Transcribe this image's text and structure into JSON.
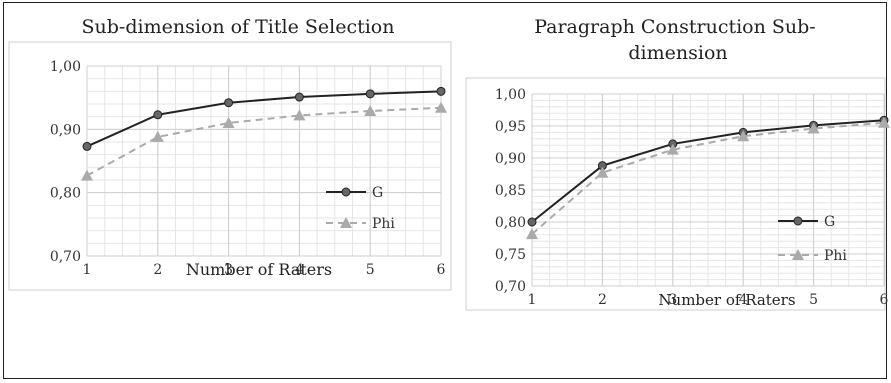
{
  "colors": {
    "g": "#222222",
    "phi": "#aaaaaa",
    "grid": "#e6e6e6",
    "gridMajor": "#cfcfcf"
  },
  "chart_data": [
    {
      "type": "line",
      "title": "Sub-dimension of Title Selection",
      "xlabel": "Number of Raters",
      "ylabel": "",
      "x": [
        1,
        2,
        3,
        4,
        5,
        6
      ],
      "ylim": [
        0.7,
        1.0
      ],
      "yticks": [
        "0,70",
        "0,80",
        "0,90",
        "1,00"
      ],
      "ytick_values": [
        0.7,
        0.8,
        0.9,
        1.0
      ],
      "legend_position": "right",
      "grid": true,
      "series": [
        {
          "name": "G",
          "values": [
            0.873,
            0.923,
            0.942,
            0.951,
            0.956,
            0.96
          ]
        },
        {
          "name": "Phi",
          "values": [
            0.827,
            0.888,
            0.91,
            0.922,
            0.929,
            0.934
          ]
        }
      ]
    },
    {
      "type": "line",
      "title": "Paragraph Construction Sub-dimension",
      "xlabel": "Number of Raters",
      "ylabel": "",
      "x": [
        1,
        2,
        3,
        4,
        5,
        6
      ],
      "ylim": [
        0.7,
        1.0
      ],
      "yticks": [
        "0,70",
        "0,75",
        "0,80",
        "0,85",
        "0,90",
        "0,95",
        "1,00"
      ],
      "ytick_values": [
        0.7,
        0.75,
        0.8,
        0.85,
        0.9,
        0.95,
        1.0
      ],
      "legend_position": "right",
      "grid": true,
      "series": [
        {
          "name": "G",
          "values": [
            0.8,
            0.888,
            0.922,
            0.94,
            0.951,
            0.959
          ]
        },
        {
          "name": "Phi",
          "values": [
            0.781,
            0.877,
            0.913,
            0.934,
            0.946,
            0.955
          ]
        }
      ]
    }
  ]
}
